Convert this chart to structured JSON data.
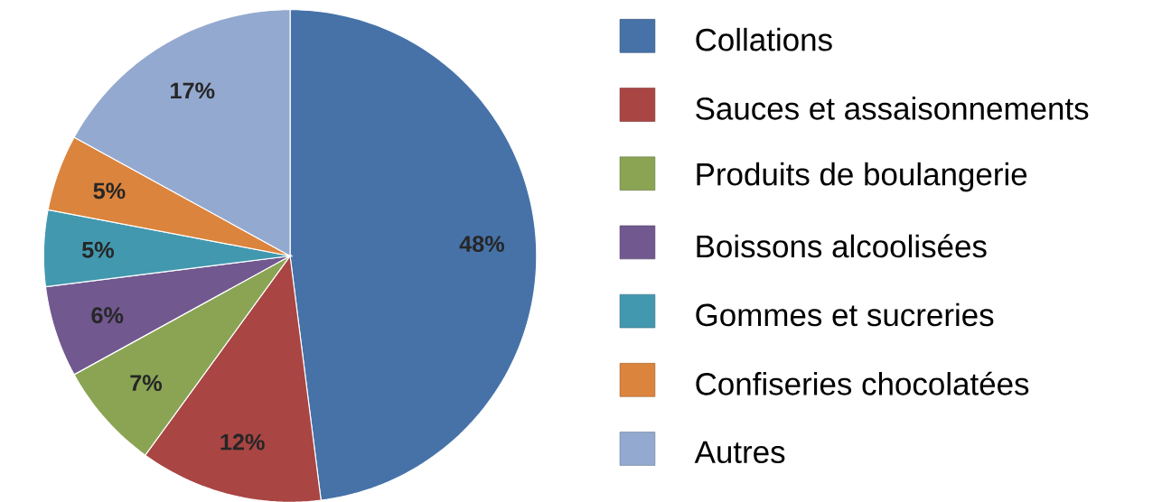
{
  "chart_data": {
    "type": "pie",
    "categories": [
      "Collations",
      "Sauces et assaisonnements",
      "Produits de boulangerie",
      "Boissons alcoolisées",
      "Gommes et sucreries",
      "Confiseries chocolatées",
      "Autres"
    ],
    "values": [
      48,
      12,
      7,
      6,
      5,
      5,
      17
    ],
    "value_labels": [
      "48%",
      "12%",
      "7%",
      "6%",
      "5%",
      "5%",
      "17%"
    ],
    "colors": [
      "#4672a8",
      "#a94543",
      "#8aa454",
      "#71588f",
      "#4298af",
      "#db843d",
      "#93a9cf"
    ],
    "legend": "right"
  }
}
